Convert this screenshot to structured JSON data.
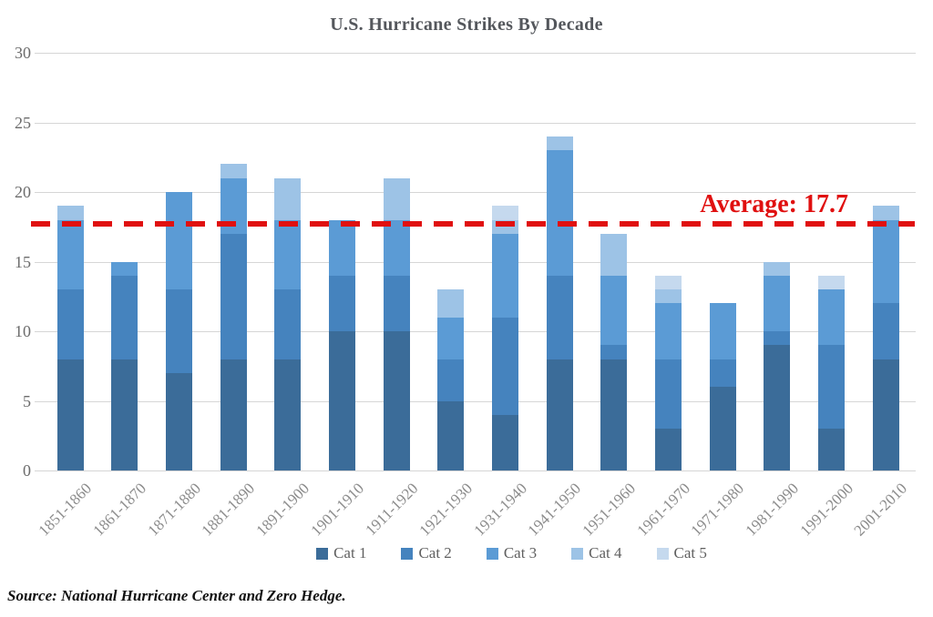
{
  "title": "U.S. Hurricane Strikes By Decade",
  "average_label": "Average: 17.7",
  "source": "Source: National Hurricane Center and Zero Hedge.",
  "colors": {
    "cat1": "#3b6c99",
    "cat2": "#4583be",
    "cat3": "#5b9bd5",
    "cat4": "#9dc3e6",
    "cat5": "#c5d9ee",
    "average_line": "#e01010",
    "gridline": "#d6d6d6"
  },
  "chart_data": {
    "type": "bar",
    "stacked": true,
    "title": "U.S. Hurricane Strikes By Decade",
    "categories": [
      "1851-1860",
      "1861-1870",
      "1871-1880",
      "1881-1890",
      "1891-1900",
      "1901-1910",
      "1911-1920",
      "1921-1930",
      "1931-1940",
      "1941-1950",
      "1951-1960",
      "1961-1970",
      "1971-1980",
      "1981-1990",
      "1991-2000",
      "2001-2010"
    ],
    "series": [
      {
        "name": "Cat 1",
        "color": "#3b6c99",
        "values": [
          8,
          8,
          7,
          8,
          8,
          10,
          10,
          5,
          4,
          8,
          8,
          3,
          6,
          9,
          3,
          8
        ]
      },
      {
        "name": "Cat 2",
        "color": "#4583be",
        "values": [
          5,
          6,
          6,
          9,
          5,
          4,
          4,
          3,
          7,
          6,
          1,
          5,
          2,
          1,
          6,
          4
        ]
      },
      {
        "name": "Cat 3",
        "color": "#5b9bd5",
        "values": [
          5,
          1,
          7,
          4,
          5,
          4,
          4,
          3,
          6,
          9,
          5,
          4,
          4,
          4,
          4,
          6
        ]
      },
      {
        "name": "Cat 4",
        "color": "#9dc3e6",
        "values": [
          1,
          0,
          0,
          1,
          3,
          0,
          3,
          2,
          1,
          1,
          3,
          1,
          0,
          1,
          0,
          1
        ]
      },
      {
        "name": "Cat 5",
        "color": "#c5d9ee",
        "values": [
          0,
          0,
          0,
          0,
          0,
          0,
          0,
          0,
          1,
          0,
          0,
          1,
          0,
          0,
          1,
          0
        ]
      }
    ],
    "totals": [
      19,
      15,
      20,
      22,
      21,
      18,
      21,
      13,
      19,
      24,
      17,
      14,
      12,
      15,
      14,
      19
    ],
    "average": 17.7,
    "xlabel": "",
    "ylabel": "",
    "ylim": [
      0,
      30
    ],
    "yticks": [
      0,
      5,
      10,
      15,
      20,
      25,
      30
    ],
    "grid": true,
    "legend_position": "bottom",
    "legend_entries": [
      "Cat 1",
      "Cat 2",
      "Cat 3",
      "Cat 4",
      "Cat 5"
    ]
  }
}
